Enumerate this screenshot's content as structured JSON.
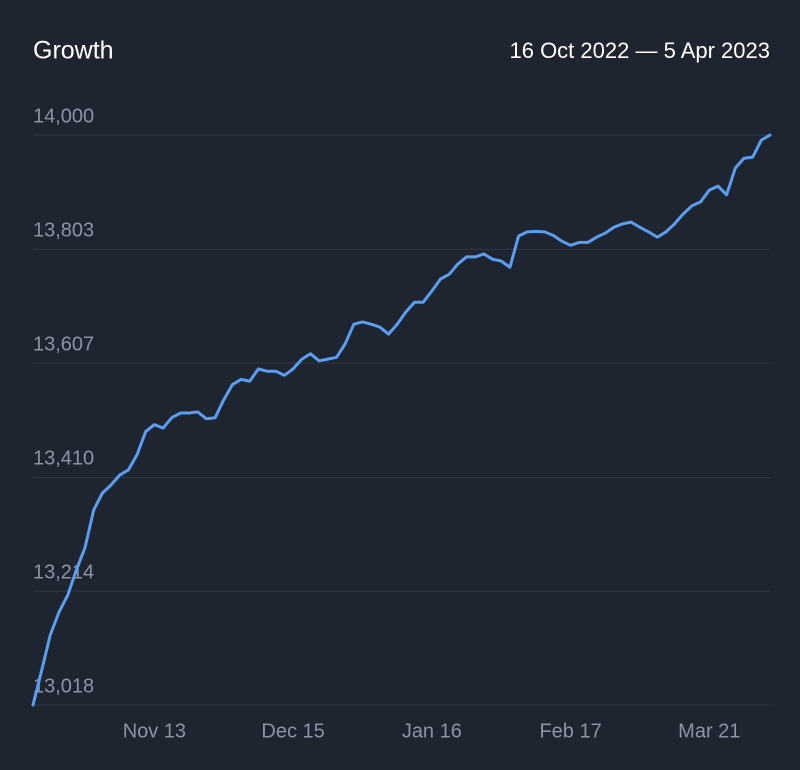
{
  "chart_data": {
    "type": "line",
    "title": "Growth",
    "subtitle": "16 Oct 2022 — 5 Apr 2023",
    "categories": [
      null,
      null,
      null,
      null,
      null,
      null,
      null,
      null,
      null,
      null,
      null,
      null,
      null,
      null,
      "Nov 13",
      null,
      null,
      null,
      null,
      null,
      null,
      null,
      null,
      null,
      null,
      null,
      null,
      null,
      null,
      null,
      "Dec 15",
      null,
      null,
      null,
      null,
      null,
      null,
      null,
      null,
      null,
      null,
      null,
      null,
      null,
      null,
      null,
      "Jan 16",
      null,
      null,
      null,
      null,
      null,
      null,
      null,
      null,
      null,
      null,
      null,
      null,
      null,
      null,
      null,
      "Feb 17",
      null,
      null,
      null,
      null,
      null,
      null,
      null,
      null,
      null,
      null,
      null,
      null,
      null,
      null,
      null,
      "Mar 21",
      null,
      null,
      null,
      null,
      null,
      null,
      null
    ],
    "series": [
      {
        "name": "Growth",
        "color": "#5b9ef0",
        "values": [
          13018,
          13078,
          13139,
          13178,
          13207,
          13251,
          13289,
          13354,
          13383,
          13397,
          13414,
          13423,
          13449,
          13489,
          13501,
          13495,
          13513,
          13521,
          13521,
          13523,
          13511,
          13513,
          13544,
          13570,
          13579,
          13576,
          13597,
          13593,
          13593,
          13586,
          13597,
          13614,
          13623,
          13611,
          13614,
          13617,
          13640,
          13674,
          13678,
          13674,
          13669,
          13657,
          13674,
          13695,
          13712,
          13712,
          13731,
          13752,
          13760,
          13778,
          13790,
          13790,
          13795,
          13786,
          13783,
          13772,
          13826,
          13833,
          13834,
          13833,
          13827,
          13817,
          13810,
          13815,
          13815,
          13824,
          13831,
          13841,
          13847,
          13850,
          13841,
          13833,
          13824,
          13833,
          13847,
          13864,
          13878,
          13885,
          13905,
          13912,
          13897,
          13943,
          13960,
          13962,
          13991,
          14000
        ]
      }
    ],
    "ylim": [
      13018,
      14000
    ],
    "yticks": [
      {
        "value": 13018,
        "label": "13,018"
      },
      {
        "value": 13214,
        "label": "13,214"
      },
      {
        "value": 13410,
        "label": "13,410"
      },
      {
        "value": 13607,
        "label": "13,607"
      },
      {
        "value": 13803,
        "label": "13,803"
      },
      {
        "value": 14000,
        "label": "14,000"
      }
    ],
    "grid": true
  }
}
